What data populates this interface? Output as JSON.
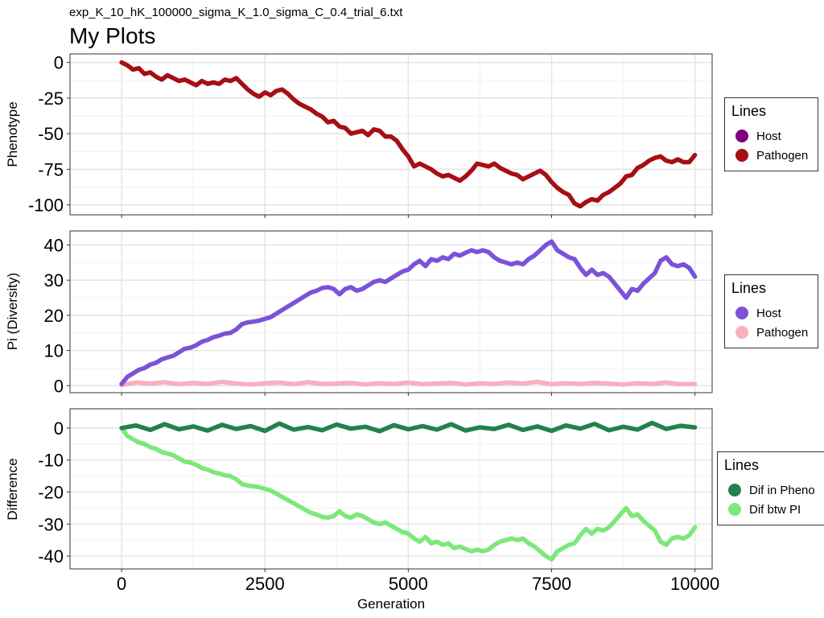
{
  "subtitle": "exp_K_10_hK_100000_sigma_K_1.0_sigma_C_0.4_trial_6.txt",
  "title": "My Plots",
  "chart_data": [
    {
      "type": "line",
      "ylabel": "Phenotype",
      "xlabel": "",
      "xlim": [
        -900,
        10300
      ],
      "ylim": [
        -107,
        6
      ],
      "x_ticks": [
        0,
        2500,
        5000,
        7500,
        10000
      ],
      "y_ticks": [
        0,
        -25,
        -50,
        -75,
        -100
      ],
      "y_tick_labels": [
        "0",
        "-25",
        "-50",
        "-75",
        "-100"
      ],
      "grid": true,
      "legend": {
        "title": "Lines",
        "position": "right",
        "entries": [
          {
            "name": "Host",
            "color": "#800080"
          },
          {
            "name": "Pathogen",
            "color": "#A50F15"
          }
        ]
      },
      "series": [
        {
          "name": "Pathogen",
          "color": "#A50F15",
          "x": [
            0,
            100,
            200,
            300,
            400,
            500,
            600,
            700,
            800,
            900,
            1000,
            1100,
            1200,
            1300,
            1400,
            1500,
            1600,
            1700,
            1800,
            1900,
            2000,
            2100,
            2200,
            2300,
            2400,
            2500,
            2600,
            2700,
            2800,
            2900,
            3000,
            3100,
            3200,
            3300,
            3400,
            3500,
            3600,
            3700,
            3800,
            3900,
            4000,
            4100,
            4200,
            4300,
            4400,
            4500,
            4600,
            4700,
            4800,
            4900,
            5000,
            5100,
            5200,
            5300,
            5400,
            5500,
            5600,
            5700,
            5800,
            5900,
            6000,
            6100,
            6200,
            6300,
            6400,
            6500,
            6600,
            6700,
            6800,
            6900,
            7000,
            7100,
            7200,
            7300,
            7400,
            7500,
            7600,
            7700,
            7800,
            7900,
            8000,
            8100,
            8200,
            8300,
            8400,
            8500,
            8600,
            8700,
            8800,
            8900,
            9000,
            9100,
            9200,
            9300,
            9400,
            9500,
            9600,
            9700,
            9800,
            9900,
            10000
          ],
          "y": [
            0,
            -2,
            -5,
            -4,
            -8,
            -7,
            -10,
            -12,
            -9,
            -11,
            -13,
            -12,
            -14,
            -16,
            -13,
            -15,
            -14,
            -15,
            -12,
            -13,
            -11,
            -15,
            -19,
            -22,
            -24,
            -21,
            -23,
            -20,
            -19,
            -22,
            -26,
            -29,
            -31,
            -33,
            -36,
            -38,
            -42,
            -41,
            -45,
            -46,
            -50,
            -49,
            -48,
            -51,
            -47,
            -48,
            -52,
            -52,
            -55,
            -61,
            -66,
            -73,
            -71,
            -73,
            -75,
            -78,
            -80,
            -79,
            -81,
            -83,
            -80,
            -76,
            -71,
            -72,
            -73,
            -71,
            -74,
            -76,
            -78,
            -79,
            -82,
            -80,
            -78,
            -76,
            -79,
            -84,
            -88,
            -91,
            -93,
            -99,
            -101,
            -98,
            -96,
            -97,
            -93,
            -91,
            -88,
            -85,
            -80,
            -79,
            -74,
            -72,
            -69,
            -67,
            -66,
            -69,
            -70,
            -68,
            -70,
            -70,
            -65
          ]
        }
      ]
    },
    {
      "type": "line",
      "ylabel": "Pi (Diversity)",
      "xlabel": "",
      "xlim": [
        -900,
        10300
      ],
      "ylim": [
        -2,
        44
      ],
      "x_ticks": [
        0,
        2500,
        5000,
        7500,
        10000
      ],
      "y_ticks": [
        0,
        10,
        20,
        30,
        40
      ],
      "y_tick_labels": [
        "0",
        "10",
        "20",
        "30",
        "40"
      ],
      "grid": true,
      "legend": {
        "title": "Lines",
        "position": "right",
        "entries": [
          {
            "name": "Host",
            "color": "#7B52D8"
          },
          {
            "name": "Pathogen",
            "color": "#F8AFBE"
          }
        ]
      },
      "series": [
        {
          "name": "Pathogen",
          "color": "#F8AFBE",
          "x": [
            0,
            250,
            500,
            750,
            1000,
            1250,
            1500,
            1750,
            2000,
            2250,
            2500,
            2750,
            3000,
            3250,
            3500,
            3750,
            4000,
            4250,
            4500,
            4750,
            5000,
            5250,
            5500,
            5750,
            6000,
            6250,
            6500,
            6750,
            7000,
            7250,
            7500,
            7750,
            8000,
            8250,
            8500,
            8750,
            9000,
            9250,
            9500,
            9750,
            10000
          ],
          "y": [
            0.2,
            0.9,
            0.6,
            1.0,
            0.4,
            0.8,
            0.5,
            1.1,
            0.6,
            0.3,
            0.7,
            0.9,
            0.4,
            1.0,
            0.5,
            0.6,
            0.8,
            0.3,
            0.7,
            0.5,
            0.9,
            0.4,
            0.6,
            0.8,
            0.3,
            0.7,
            0.5,
            0.9,
            0.6,
            1.1,
            0.4,
            0.7,
            0.5,
            0.8,
            0.6,
            0.3,
            0.7,
            0.5,
            0.9,
            0.4,
            0.5
          ]
        },
        {
          "name": "Host",
          "color": "#7B52D8",
          "x": [
            0,
            100,
            200,
            300,
            400,
            500,
            600,
            700,
            800,
            900,
            1000,
            1100,
            1200,
            1300,
            1400,
            1500,
            1600,
            1700,
            1800,
            1900,
            2000,
            2100,
            2200,
            2300,
            2400,
            2500,
            2600,
            2700,
            2800,
            2900,
            3000,
            3100,
            3200,
            3300,
            3400,
            3500,
            3600,
            3700,
            3800,
            3900,
            4000,
            4100,
            4200,
            4300,
            4400,
            4500,
            4600,
            4700,
            4800,
            4900,
            5000,
            5100,
            5200,
            5300,
            5400,
            5500,
            5600,
            5700,
            5800,
            5900,
            6000,
            6100,
            6200,
            6300,
            6400,
            6500,
            6600,
            6700,
            6800,
            6900,
            7000,
            7100,
            7200,
            7300,
            7400,
            7500,
            7600,
            7700,
            7800,
            7900,
            8000,
            8100,
            8200,
            8300,
            8400,
            8500,
            8600,
            8700,
            8800,
            8900,
            9000,
            9100,
            9200,
            9300,
            9400,
            9500,
            9600,
            9700,
            9800,
            9900,
            10000
          ],
          "y": [
            0.5,
            2.5,
            3.5,
            4.5,
            5.0,
            6.0,
            6.5,
            7.5,
            8.0,
            8.5,
            9.5,
            10.5,
            10.8,
            11.5,
            12.5,
            13.0,
            13.8,
            14.2,
            14.8,
            15.0,
            16.0,
            17.5,
            18.0,
            18.2,
            18.5,
            19.0,
            19.5,
            20.5,
            21.5,
            22.5,
            23.5,
            24.5,
            25.5,
            26.5,
            27.0,
            27.8,
            28.0,
            27.5,
            26.0,
            27.5,
            28.0,
            27.0,
            27.5,
            28.5,
            29.5,
            30.0,
            29.5,
            30.5,
            31.5,
            32.5,
            33.0,
            34.5,
            35.5,
            34.0,
            36.0,
            35.5,
            36.5,
            36.0,
            37.5,
            37.0,
            37.8,
            38.5,
            38.0,
            38.5,
            38.0,
            36.5,
            35.5,
            35.0,
            34.5,
            35.0,
            34.5,
            36.0,
            37.0,
            38.5,
            40.0,
            41.0,
            38.5,
            37.5,
            36.5,
            36.0,
            33.5,
            31.5,
            33.0,
            31.5,
            32.0,
            31.0,
            29.0,
            27.0,
            25.0,
            27.5,
            27.0,
            29.0,
            30.5,
            32.0,
            35.5,
            36.5,
            34.5,
            34.0,
            34.5,
            33.5,
            31.0
          ]
        }
      ]
    },
    {
      "type": "line",
      "ylabel": "Difference",
      "xlabel": "Generation",
      "xlim": [
        -900,
        10300
      ],
      "ylim": [
        -44,
        6
      ],
      "x_ticks": [
        0,
        2500,
        5000,
        7500,
        10000
      ],
      "x_tick_labels": [
        "0",
        "2500",
        "5000",
        "7500",
        "10000"
      ],
      "y_ticks": [
        0,
        -10,
        -20,
        -30,
        -40
      ],
      "y_tick_labels": [
        "0",
        "-10",
        "-20",
        "-30",
        "-40"
      ],
      "grid": true,
      "legend": {
        "title": "Lines",
        "position": "right",
        "entries": [
          {
            "name": "Dif in Pheno",
            "color": "#23824A"
          },
          {
            "name": "Dif btw PI",
            "color": "#7DE87A"
          }
        ]
      },
      "series": [
        {
          "name": "Dif btw PI",
          "color": "#7DE87A",
          "x": [
            0,
            100,
            200,
            300,
            400,
            500,
            600,
            700,
            800,
            900,
            1000,
            1100,
            1200,
            1300,
            1400,
            1500,
            1600,
            1700,
            1800,
            1900,
            2000,
            2100,
            2200,
            2300,
            2400,
            2500,
            2600,
            2700,
            2800,
            2900,
            3000,
            3100,
            3200,
            3300,
            3400,
            3500,
            3600,
            3700,
            3800,
            3900,
            4000,
            4100,
            4200,
            4300,
            4400,
            4500,
            4600,
            4700,
            4800,
            4900,
            5000,
            5100,
            5200,
            5300,
            5400,
            5500,
            5600,
            5700,
            5800,
            5900,
            6000,
            6100,
            6200,
            6300,
            6400,
            6500,
            6600,
            6700,
            6800,
            6900,
            7000,
            7100,
            7200,
            7300,
            7400,
            7500,
            7600,
            7700,
            7800,
            7900,
            8000,
            8100,
            8200,
            8300,
            8400,
            8500,
            8600,
            8700,
            8800,
            8900,
            9000,
            9100,
            9200,
            9300,
            9400,
            9500,
            9600,
            9700,
            9800,
            9900,
            10000
          ],
          "y": [
            0,
            -2.5,
            -3.5,
            -4.5,
            -5.0,
            -6.0,
            -6.5,
            -7.5,
            -8.0,
            -8.5,
            -9.5,
            -10.5,
            -10.8,
            -11.5,
            -12.5,
            -13.0,
            -13.8,
            -14.2,
            -14.8,
            -15.0,
            -16.0,
            -17.5,
            -18.0,
            -18.2,
            -18.5,
            -19.0,
            -19.5,
            -20.5,
            -21.5,
            -22.5,
            -23.5,
            -24.5,
            -25.5,
            -26.5,
            -27.0,
            -27.8,
            -28.0,
            -27.5,
            -26.0,
            -27.5,
            -28.0,
            -27.0,
            -27.5,
            -28.5,
            -29.5,
            -30.0,
            -29.5,
            -30.5,
            -31.5,
            -32.5,
            -33.0,
            -34.5,
            -35.5,
            -34.0,
            -36.0,
            -35.5,
            -36.5,
            -36.0,
            -37.5,
            -37.0,
            -37.8,
            -38.5,
            -38.0,
            -38.5,
            -38.0,
            -36.5,
            -35.5,
            -35.0,
            -34.5,
            -35.0,
            -34.5,
            -36.0,
            -37.0,
            -38.5,
            -40.0,
            -41.0,
            -38.5,
            -37.5,
            -36.5,
            -36.0,
            -33.5,
            -31.5,
            -33.0,
            -31.5,
            -32.0,
            -31.0,
            -29.0,
            -27.0,
            -25.0,
            -27.5,
            -27.0,
            -29.0,
            -30.5,
            -32.0,
            -35.5,
            -36.5,
            -34.5,
            -34.0,
            -34.5,
            -33.5,
            -31.0
          ]
        },
        {
          "name": "Dif in Pheno",
          "color": "#23824A",
          "x": [
            0,
            250,
            500,
            750,
            1000,
            1250,
            1500,
            1750,
            2000,
            2250,
            2500,
            2750,
            3000,
            3250,
            3500,
            3750,
            4000,
            4250,
            4500,
            4750,
            5000,
            5250,
            5500,
            5750,
            6000,
            6250,
            6500,
            6750,
            7000,
            7250,
            7500,
            7750,
            8000,
            8250,
            8500,
            8750,
            9000,
            9250,
            9500,
            9750,
            10000
          ],
          "y": [
            0,
            0.8,
            -0.6,
            1.2,
            -0.4,
            0.5,
            -0.8,
            1.0,
            -0.3,
            0.6,
            -0.9,
            1.4,
            -0.5,
            0.3,
            -0.7,
            1.1,
            -0.2,
            0.4,
            -1.0,
            0.9,
            -0.4,
            0.6,
            -0.5,
            1.2,
            -0.8,
            0.2,
            -0.3,
            1.0,
            -0.6,
            0.5,
            -0.9,
            0.8,
            -0.2,
            1.3,
            -0.7,
            0.4,
            -0.5,
            1.6,
            -0.3,
            0.7,
            0.2
          ]
        }
      ]
    }
  ]
}
